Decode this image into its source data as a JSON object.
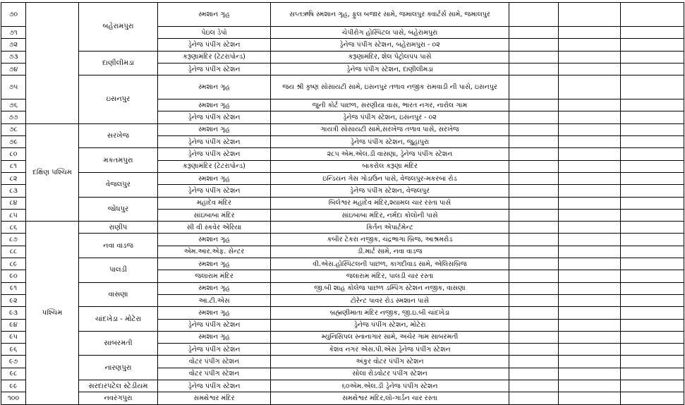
{
  "zones": [
    {
      "wards": [
        {
          "name": "બહેરામપુરા",
          "rows": [
            {
              "no": "૭૦",
              "type": "સ્મશાન ગૃહ",
              "location": "સપ્તઋષિ સ્મશાન ગૃહ, ફુલ બજાર સામે, જમાલપુર ક્વાર્ટર્સ સામે, જમાલપુર"
            },
            {
              "no": "૭૧",
              "type": "પેઇલ ડેપો",
              "location": "ચેપીરોગ હોસ્પિટલ પાસે, બહેરામપુરા"
            },
            {
              "no": "૭૨",
              "type": "ડ્રેનેજ પંપીંગ સ્ટેશન",
              "location": "ડ્રેનેજ પંપીંગ સ્ટેશન, બહેરામપુરા - ૦૨"
            }
          ]
        },
        {
          "name": "દાણીલીમડા",
          "rows": [
            {
              "no": "૭૩",
              "type": "કરૂણામંદિર (ટેટરાપોન્ડ)",
              "location": "કરૂણામંદિર, શેલ પેટ્રોલપંપ પાસે"
            },
            {
              "no": "૭૪",
              "type": "ડ્રેનેજ પંપીંગ સ્ટેશન",
              "location": "ડ્રેનેજ પંપીંગ સ્ટેશન, દાણીલીમડા"
            }
          ]
        },
        {
          "name": "ઇસનપુર",
          "rows": [
            {
              "no": "૭૫",
              "type": "સ્મશાન ગૃહ",
              "location": "જય શ્રી કૃષ્ણ સોસાયટી સામે, ઇસનપુર તળાવ નજીક રામવાડી ની પાસે, ઇસનપુર"
            },
            {
              "no": "૭૬",
              "type": "સ્મશાન ગૃહ",
              "location": "જુની કોર્ટ પાછળ, સરણીયા વાસ, ભારત નગર, નારોલ ગામ"
            },
            {
              "no": "૭૭",
              "type": "ડ્રેનેજ પંપીંગ સ્ટેશન",
              "location": "ડ્રેનેજ પંપીંગ સ્ટેશન, ઇસનપુર - ૦૨"
            }
          ]
        }
      ]
    },
    {
      "name": "દક્ષિણ પશ્ચિમ",
      "wards": [
        {
          "name": "સરખેજ",
          "rows": [
            {
              "no": "૭૮",
              "type": "સ્મશાન ગૃહ",
              "location": "ગાયત્રી સોસાયટી સામે,સરખેજ તળાવ પાસે, સરખેજ"
            },
            {
              "no": "૭૯",
              "type": "ડ્રેનેજ પંપીંગ સ્ટેશન",
              "location": "ડ્રેનેજ પંપીંગ સ્ટેશન, જુહાપુરા"
            }
          ]
        },
        {
          "name": "મકતમપુરા",
          "rows": [
            {
              "no": "૮૦",
              "type": "ડ્રેનેજ પંપીંગ સ્ટેશન",
              "location": "૨૮૫ એમ.એલ.ડી વાસણા, ડ્રેનેજ પંપીંગ સ્ટેશન"
            },
            {
              "no": "૮૧",
              "type": "કરૂણામંદિર (ટેટરાપોન્ડ)",
              "location": "બાકરોલ કરૂણા મંદિર"
            }
          ]
        },
        {
          "name": "વેજલપુર",
          "rows": [
            {
              "no": "૮૨",
              "type": "સ્મશાન ગૃહ",
              "location": "ઇન્ડિયન ગેસ ગોડાઉન પાસે, વેજલપુર-મકરબા રોડ"
            },
            {
              "no": "૮૩",
              "type": "ડ્રેનેજ પંપીંગ સ્ટેશન",
              "location": "ડ્રેનેજ પંપીંગ સ્ટેશન, વેજલપુર"
            }
          ]
        },
        {
          "name": "જોધપુર",
          "rows": [
            {
              "no": "૮૪",
              "type": "મહાદેવ મંદિર",
              "location": "બિલેશ્વર મહાદેવ મંદિર,શ્યામલ ચાર રસ્તા પાસે"
            },
            {
              "no": "૮૫",
              "type": "સાંઇબાબા મંદિર",
              "location": "સાંઇબાબા મંદિર, નર્મદા કોલોની પાસે"
            }
          ]
        }
      ]
    },
    {
      "name": "પશ્ચિમ",
      "wards": [
        {
          "name": "રાણીપ",
          "rows": [
            {
              "no": "૮૬",
              "type": "સી વી સ્કવેર એરિયા",
              "location": "કિર્તન એપાર્ટમેન્ટ"
            }
          ]
        },
        {
          "name": "નવા વાડજ",
          "rows": [
            {
              "no": "૮૭",
              "type": "સ્મશાન ગૃહ",
              "location": "કબીર ટેકરા નજીક, ચંદ્રભાગા બ્રિજ, આશ્રમરોડ"
            },
            {
              "no": "૮૮",
              "type": "એમ.આર.એફ. સેન્ટર",
              "location": "ડી.માર્ટ સામે, નવા વાડજ"
            }
          ]
        },
        {
          "name": "પાલડી",
          "rows": [
            {
              "no": "૮૯",
              "type": "સ્મશાન ગૃહ",
              "location": "વી.એસ.હોસ્પિટલની પાછળ, કાગદીવાડ સામે, એલિસબ્રિજ"
            },
            {
              "no": "૯૦",
              "type": "જલારામ મંદિર",
              "location": "જલારામ મંદિર, પાલડી ચાર રસ્તા"
            }
          ]
        },
        {
          "name": "વાસણા",
          "rows": [
            {
              "no": "૯૧",
              "type": "સ્મશાન ગૃહ",
              "location": "જી.બી શાહ કોલેજ પાછળ ડમ્પિંગ સ્ટેશન નજીક, વાસણા"
            },
            {
              "no": "૯૨",
              "type": "આ.ટી.એસ",
              "location": "ટોરેન્ટ પાવર રોડ સ્મશાન પાસે"
            }
          ]
        },
        {
          "name": "ચાંદખેડા - મોટેરા",
          "rows": [
            {
              "no": "૯૩",
              "type": "સ્મશાન ગૃહ",
              "location": "બ્રહ્મણીમાતા મંદિર નજીક, જી.ઇ.બી ચાંદખેડા"
            },
            {
              "no": "૯૪",
              "type": "ડ્રેનેજ પંપીંગ સ્ટેશન",
              "location": "ડ્રેનેજ પંપીંગ સ્ટેશન, મોટેરા"
            }
          ]
        },
        {
          "name": "સાબરમતી",
          "rows": [
            {
              "no": "૯૫",
              "type": "સ્મશાન ગૃહ",
              "location": "મ્યુનિસિપલ સ્નાનાગાર સામે, અચેર ગામ સાબરમતી"
            },
            {
              "no": "૯૬",
              "type": "ડ્રેનેજ પંપીંગ સ્ટેશન",
              "location": "કેશવ નગર એસ.પી.એસ ડ્રેનેજ પંપીંગ સ્ટેશન"
            }
          ]
        },
        {
          "name": "નારણપુરા",
          "rows": [
            {
              "no": "૯૭",
              "type": "વોટર પંપીંગ સ્ટેશન",
              "location": "અંકુર વોટર પંપીંગ સ્ટેશન"
            },
            {
              "no": "૯૮",
              "type": "વોટર પંપીંગ સ્ટેશન",
              "location": "સોલા રોડવોટર પંપીંગ સ્ટેશન"
            }
          ]
        },
        {
          "name": "સરદારપટેલ સ્ટેડીયમ",
          "rows": [
            {
              "no": "૯૯",
              "type": "ડ્રેનેજ પંપીંગ સ્ટેશન",
              "location": "૬૦એમ.એલ.ડી ડ્રેનેજ પંપીંગ સ્ટેશન"
            }
          ]
        },
        {
          "name": "નવરંગપુરા",
          "rows": [
            {
              "no": "૧૦૦",
              "type": "સમથેશ્વર મંદિર",
              "location": "સમથેશ્વર મંદિર,લો-ગાર્ડન ચાર રસ્તા"
            }
          ]
        }
      ]
    }
  ]
}
